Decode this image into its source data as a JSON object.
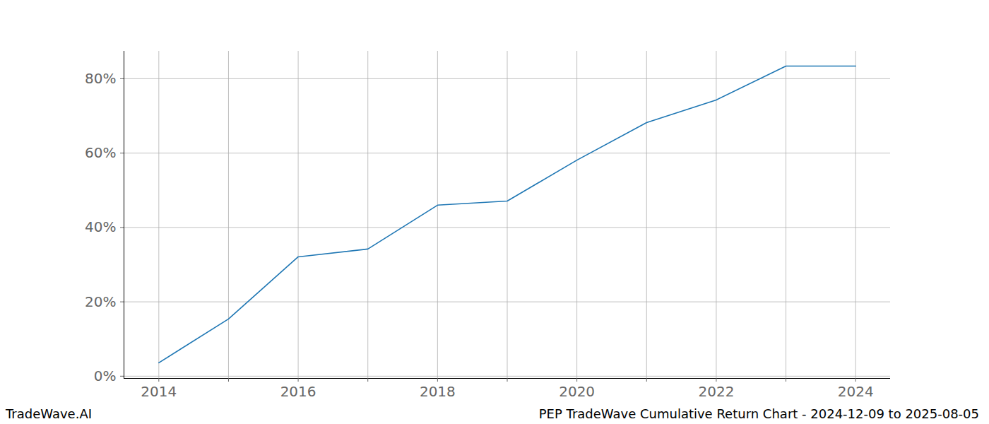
{
  "chart_data": {
    "type": "line",
    "title": "PEP TradeWave Cumulative Return Chart - 2024-12-09 to 2025-08-05",
    "annotations": [
      "TradeWave.AI"
    ],
    "x": [
      2014,
      2015,
      2016,
      2017,
      2018,
      2019,
      2020,
      2021,
      2022,
      2023,
      2024
    ],
    "series": [
      {
        "name": "PEP",
        "color": "#1f77b4",
        "values": [
          3.6,
          15.4,
          32.1,
          34.2,
          46.0,
          47.1,
          58.1,
          68.2,
          74.3,
          83.4,
          83.4
        ]
      }
    ],
    "xlim": [
      2013.5,
      2024.5
    ],
    "xticks": [
      2014,
      2016,
      2018,
      2020,
      2022,
      2024
    ],
    "ylim": [
      -0.6,
      87.4
    ],
    "yticks": [
      {
        "value": 0,
        "label": "0%"
      },
      {
        "value": 20,
        "label": "20%"
      },
      {
        "value": 40,
        "label": "40%"
      },
      {
        "value": 60,
        "label": "60%"
      },
      {
        "value": 80,
        "label": "80%"
      }
    ],
    "grid": true
  }
}
